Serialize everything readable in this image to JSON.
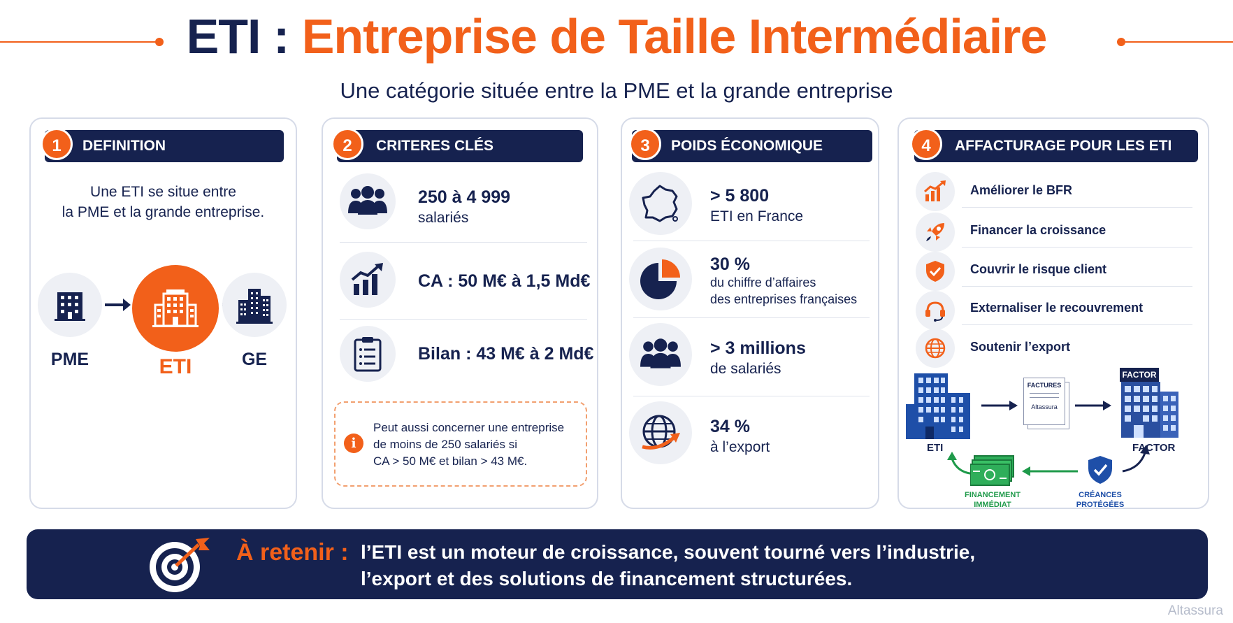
{
  "header": {
    "title_prefix": "ETI : ",
    "title_main": "Entreprise de Taille Intermédiaire",
    "subtitle": "Une catégorie située entre la PME et la grande entreprise"
  },
  "colors": {
    "navy": "#16224f",
    "orange": "#f2601a",
    "green": "#1f9a4a",
    "blue": "#1e4fa8"
  },
  "card1": {
    "number": "1",
    "heading": "DEFINITION",
    "text_line1": "Une ETI se situe entre",
    "text_line2": "la PME et la grande entreprise.",
    "labels": {
      "pme": "PME",
      "eti": "ETI",
      "ge": "GE"
    },
    "icons": [
      "building-icon",
      "arrow-right-icon",
      "office-building-icon",
      "skyscraper-icon"
    ]
  },
  "card2": {
    "number": "2",
    "heading": "CRITERES CLÉS",
    "items": [
      {
        "icon": "people-icon",
        "line1": "250 à 4 999",
        "line2": "salariés"
      },
      {
        "icon": "growth-chart-icon",
        "line1": "CA : 50 M€ à 1,5 Md€"
      },
      {
        "icon": "clipboard-icon",
        "line1": "Bilan : 43 M€ à 2 Md€"
      }
    ],
    "note_icon": "info-icon",
    "note_lines": [
      "Peut aussi concerner une entreprise",
      "de moins de 250 salariés si",
      "CA > 50 M€ et bilan > 43 M€."
    ]
  },
  "card3": {
    "number": "3",
    "heading": "POIDS ÉCONOMIQUE",
    "items": [
      {
        "icon": "france-map-icon",
        "line1": "> 5 800",
        "line2": "ETI en France"
      },
      {
        "icon": "pie-chart-icon",
        "line1": "30 %",
        "line2": "du chiffre d’affaires",
        "line3": "des entreprises françaises"
      },
      {
        "icon": "people-icon",
        "line1": "> 3 millions",
        "line2": "de salariés"
      },
      {
        "icon": "globe-arrow-icon",
        "line1": "34 %",
        "line2": "à l’export"
      }
    ]
  },
  "card4": {
    "number": "4",
    "heading": "AFFACTURAGE POUR LES ETI",
    "items": [
      {
        "icon": "chart-up-icon",
        "label": "Améliorer le BFR"
      },
      {
        "icon": "rocket-icon",
        "label": "Financer la croissance"
      },
      {
        "icon": "shield-check-icon",
        "label": "Couvrir le risque client"
      },
      {
        "icon": "headset-icon",
        "label": "Externaliser le recouvrement"
      },
      {
        "icon": "globe-icon",
        "label": "Soutenir l’export"
      }
    ],
    "diagram": {
      "eti_label": "ETI",
      "factor_label": "FACTOR",
      "factor_sign": "FACTOR",
      "invoice_title": "FACTURES",
      "invoice_brand": "Altassura",
      "financing_line1": "FINANCEMENT",
      "financing_line2": "IMMÉDIAT",
      "protected_line1": "CRÉANCES",
      "protected_line2": "PROTÉGÉES"
    }
  },
  "footer": {
    "icon": "target-icon",
    "label": "À retenir :",
    "line1": "l’ETI est un moteur de croissance, souvent tourné vers l’industrie,",
    "line2": "l’export et des solutions de financement structurées."
  },
  "watermark": "Altassura"
}
